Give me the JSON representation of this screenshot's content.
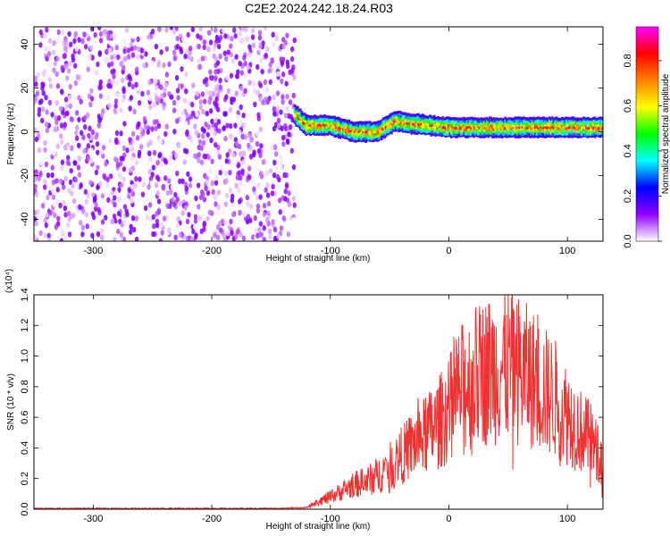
{
  "figure_title": "C2E2.2024.242.18.24.R03",
  "chart_data": [
    {
      "type": "heatmap",
      "xlabel": "Height of straight line (km)",
      "ylabel": "Frequency (Hz)",
      "xlim": [
        -350,
        130
      ],
      "ylim": [
        -50,
        48
      ],
      "x_ticks": [
        -300,
        -200,
        -100,
        0,
        100
      ],
      "y_ticks": [
        -40,
        -20,
        0,
        20,
        40
      ],
      "colorbar": {
        "label": "Normalized spectral amplitude",
        "range": [
          0,
          0.95
        ],
        "ticks": [
          "0.0",
          "0.2",
          "0.4",
          "0.6",
          "0.8"
        ],
        "colormap": [
          "#ffffff",
          "#8f00ff",
          "#0000ff",
          "#00ffff",
          "#00ff00",
          "#ffff00",
          "#ff8000",
          "#ff0000",
          "#ff00ff"
        ]
      },
      "regions": [
        {
          "x_range": [
            -350,
            -130
          ],
          "freq_range": [
            -50,
            48
          ],
          "amplitude": [
            0.0,
            0.15
          ],
          "description": "noise"
        },
        {
          "x_range": [
            -130,
            130
          ],
          "center_freq": [
            [
              -130,
              8
            ],
            [
              -120,
              3
            ],
            [
              -100,
              3
            ],
            [
              -80,
              0
            ],
            [
              -60,
              0
            ],
            [
              -45,
              5
            ],
            [
              -35,
              4
            ],
            [
              0,
              2
            ],
            [
              130,
              2
            ]
          ],
          "half_width": 3,
          "amplitude": [
            0.1,
            0.95
          ]
        }
      ],
      "grid": false
    },
    {
      "type": "line",
      "xlabel": "Height of straight line (km)",
      "ylabel": "SNR (10 * v/v)",
      "y_multiplier": "(x10⁴)",
      "xlim": [
        -350,
        130
      ],
      "ylim": [
        0,
        1.4
      ],
      "x_ticks": [
        -300,
        -200,
        -100,
        0,
        100
      ],
      "y_ticks": [
        "0.0",
        "0.2",
        "0.4",
        "0.6",
        "0.8",
        "1.0",
        "1.2",
        "1.4"
      ],
      "series": [
        {
          "color": "#ee3333",
          "x": [
            -350,
            -300,
            -250,
            -200,
            -150,
            -120,
            -110,
            -100,
            -90,
            -80,
            -70,
            -60,
            -50,
            -40,
            -30,
            -20,
            -10,
            0,
            10,
            20,
            30,
            40,
            50,
            60,
            70,
            80,
            90,
            100,
            110,
            120,
            130
          ],
          "y": [
            0.005,
            0.005,
            0.005,
            0.005,
            0.005,
            0.01,
            0.05,
            0.08,
            0.12,
            0.16,
            0.18,
            0.22,
            0.28,
            0.35,
            0.42,
            0.48,
            0.55,
            0.65,
            0.78,
            0.85,
            0.9,
            0.92,
            0.95,
            0.9,
            0.85,
            0.78,
            0.72,
            0.62,
            0.52,
            0.45,
            0.3
          ]
        }
      ],
      "grid": false
    }
  ]
}
